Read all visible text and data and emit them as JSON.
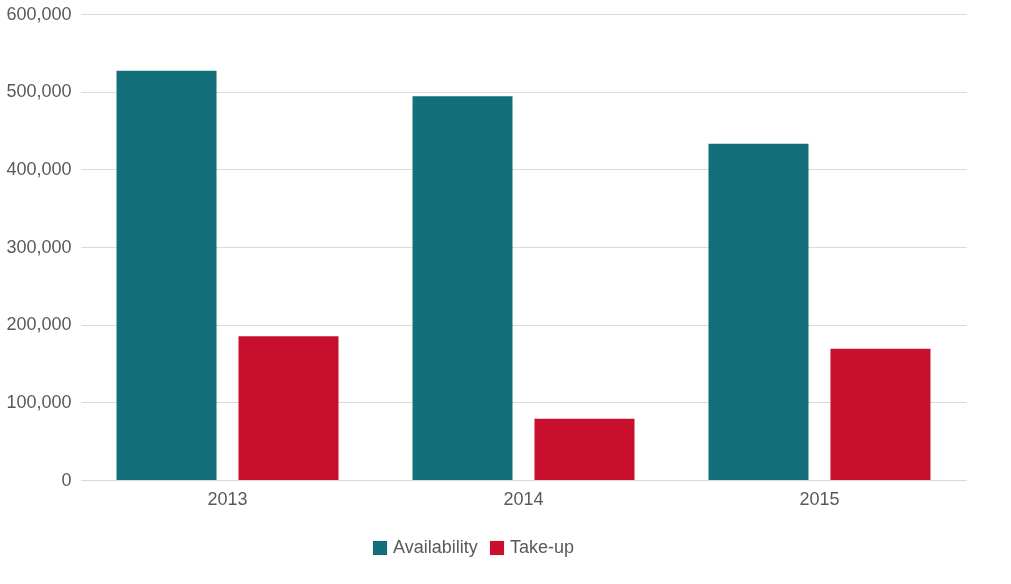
{
  "chart_data": {
    "type": "bar",
    "categories": [
      "2013",
      "2014",
      "2015"
    ],
    "series": [
      {
        "name": "Availability",
        "color": "#13707a",
        "values": [
          527000,
          494000,
          433000
        ]
      },
      {
        "name": "Take-up",
        "color": "#c8102e",
        "values": [
          185000,
          79000,
          169000
        ]
      }
    ],
    "ylim": [
      0,
      600000
    ],
    "yticks": [
      0,
      {
        "value": 100000,
        "label": "100,000"
      },
      {
        "value": 200000,
        "label": "200,000"
      },
      {
        "value": 300000,
        "label": "300,000"
      },
      {
        "value": 400000,
        "label": "400,000"
      },
      {
        "value": 500000,
        "label": "500,000"
      },
      {
        "value": 600000,
        "label": "600,000"
      }
    ],
    "grid": "y",
    "legend": "bottom"
  }
}
